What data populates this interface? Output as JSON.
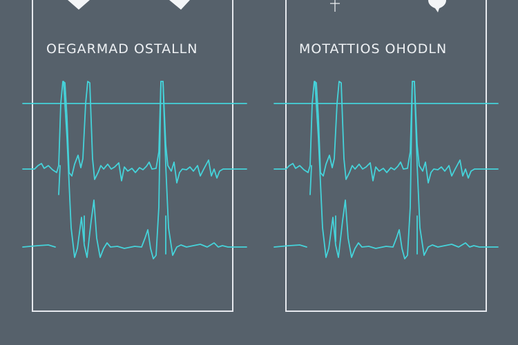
{
  "colors": {
    "background": "#56616b",
    "trace": "#45d3da",
    "frame": "#e6e9ee"
  },
  "panels": [
    {
      "title": "OEGARMAD  OSTALLN",
      "icons": [
        "heart-marker-icon",
        "heart-marker-icon"
      ]
    },
    {
      "title": "MOTATTIOS  OHODLN",
      "icons": [
        "cross-icon",
        "drop-marker-icon"
      ]
    }
  ]
}
